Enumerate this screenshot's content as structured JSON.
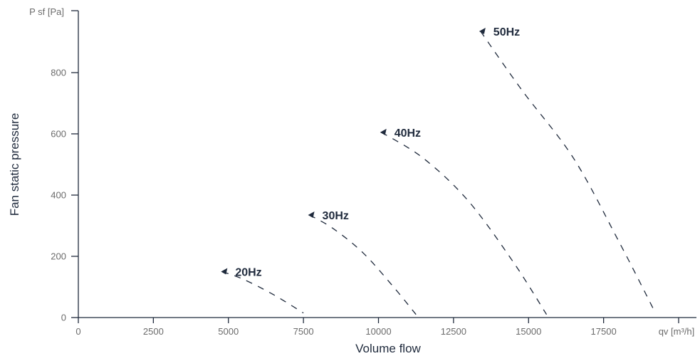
{
  "chart_data": {
    "type": "line",
    "xlabel": "Volume flow",
    "ylabel": "Fan static pressure",
    "x_unit": "qv [m³/h]",
    "y_unit": "P sf [Pa]",
    "xlim": [
      0,
      20000
    ],
    "ylim": [
      0,
      1000
    ],
    "x_ticks": [
      0,
      2500,
      5000,
      7500,
      10000,
      12500,
      15000,
      17500
    ],
    "y_ticks": [
      0,
      200,
      400,
      600,
      800
    ],
    "grid": false,
    "series": [
      {
        "name": "20Hz",
        "x": [
          4800,
          5500,
          6500,
          7500
        ],
        "y": [
          150,
          125,
          75,
          15
        ]
      },
      {
        "name": "30Hz",
        "x": [
          7700,
          8500,
          9500,
          10500,
          11250
        ],
        "y": [
          335,
          290,
          210,
          100,
          10
        ]
      },
      {
        "name": "40Hz",
        "x": [
          10100,
          11500,
          13000,
          14500,
          15600
        ],
        "y": [
          605,
          520,
          380,
          180,
          10
        ]
      },
      {
        "name": "50Hz",
        "x": [
          13400,
          14800,
          16500,
          18000,
          19200
        ],
        "y": [
          935,
          740,
          520,
          250,
          20
        ]
      }
    ]
  }
}
